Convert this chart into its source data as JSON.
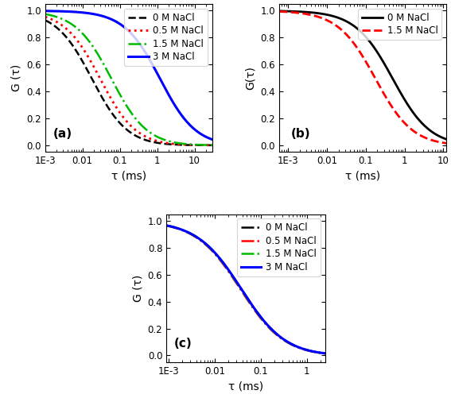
{
  "panel_a": {
    "label": "(a)",
    "xlabel": "τ (ms)",
    "ylabel": "G (τ)",
    "xlim": [
      0.001,
      30
    ],
    "ylim": [
      -0.05,
      1.05
    ],
    "xticks": [
      0.001,
      0.01,
      0.1,
      1,
      10
    ],
    "xticklabels": [
      "1E-3",
      "0.01",
      "0.1",
      "1",
      "10"
    ],
    "curves": [
      {
        "label": "0 M NaCl",
        "color": "#000000",
        "ls": "--",
        "lw": 1.8,
        "tau_D": 0.018,
        "alpha": 0.9
      },
      {
        "label": "0.5 M NaCl",
        "color": "#ff0000",
        "ls": ":",
        "lw": 2.0,
        "tau_D": 0.03,
        "alpha": 0.9
      },
      {
        "label": "1.5 M NaCl",
        "color": "#00bb00",
        "ls": "-.",
        "lw": 1.8,
        "tau_D": 0.06,
        "alpha": 0.9
      },
      {
        "label": "3 M NaCl",
        "color": "#0000ff",
        "ls": "-",
        "lw": 2.2,
        "tau_D": 1.2,
        "alpha": 0.9
      }
    ]
  },
  "panel_b": {
    "label": "(b)",
    "xlabel": "τ (ms)",
    "ylabel": "G(τ)",
    "xlim": [
      0.0006,
      12
    ],
    "ylim": [
      -0.05,
      1.05
    ],
    "xticks": [
      0.001,
      0.01,
      0.1,
      1,
      10
    ],
    "xticklabels": [
      "1E-3",
      "0.01",
      "0.1",
      "1",
      "10"
    ],
    "curves": [
      {
        "label": "0 M NaCl",
        "color": "#000000",
        "ls": "-",
        "lw": 2.0,
        "tau_D": 0.5,
        "alpha": 0.9
      },
      {
        "label": "1.5 M NaCl",
        "color": "#ff0000",
        "ls": "--",
        "lw": 2.0,
        "tau_D": 0.18,
        "alpha": 0.9
      }
    ]
  },
  "panel_c": {
    "label": "(c)",
    "xlabel": "τ (ms)",
    "ylabel": "G (τ)",
    "xlim": [
      0.0009,
      2.5
    ],
    "ylim": [
      -0.05,
      1.05
    ],
    "xticks": [
      0.001,
      0.01,
      0.1,
      1
    ],
    "xticklabels": [
      "1E-3",
      "0.01",
      "0.1",
      "1"
    ],
    "curves": [
      {
        "label": "0 M NaCl",
        "color": "#000000",
        "ls": "-.",
        "lw": 1.8,
        "tau_D": 0.038,
        "alpha": 0.9
      },
      {
        "label": "0.5 M NaCl",
        "color": "#ff0000",
        "ls": "-.",
        "lw": 1.8,
        "tau_D": 0.036,
        "alpha": 0.9
      },
      {
        "label": "1.5 M NaCl",
        "color": "#00bb00",
        "ls": "-.",
        "lw": 1.8,
        "tau_D": 0.037,
        "alpha": 0.9
      },
      {
        "label": "3 M NaCl",
        "color": "#0000ff",
        "ls": "-",
        "lw": 2.2,
        "tau_D": 0.038,
        "alpha": 0.9
      }
    ]
  },
  "tick_fontsize": 8.5,
  "label_fontsize": 10,
  "legend_fontsize": 8.5
}
